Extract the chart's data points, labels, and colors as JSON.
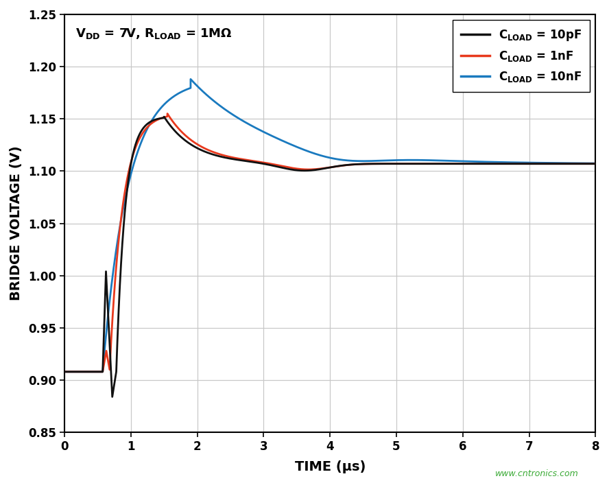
{
  "xlabel": "TIME (μs)",
  "ylabel": "BRIDGE VOLTAGE (V)",
  "xlim": [
    0,
    8
  ],
  "ylim": [
    0.85,
    1.25
  ],
  "yticks": [
    0.85,
    0.9,
    0.95,
    1.0,
    1.05,
    1.1,
    1.15,
    1.2,
    1.25
  ],
  "xticks": [
    0,
    1,
    2,
    3,
    4,
    5,
    6,
    7,
    8
  ],
  "steady_state": 1.107,
  "colors": {
    "black": "#111111",
    "red": "#e8391d",
    "blue": "#1a7abf"
  },
  "line_width": 2.0,
  "watermark": "www.cntronics.com",
  "legend": [
    {
      "label": "C$_{LOAD}$ = 10pF",
      "color": "#111111"
    },
    {
      "label": "C$_{LOAD}$ = 1nF",
      "color": "#e8391d"
    },
    {
      "label": "C$_{LOAD}$ = 10nF",
      "color": "#1a7abf"
    }
  ],
  "bg_color": "#ffffff",
  "grid_color": "#c8c8c8"
}
